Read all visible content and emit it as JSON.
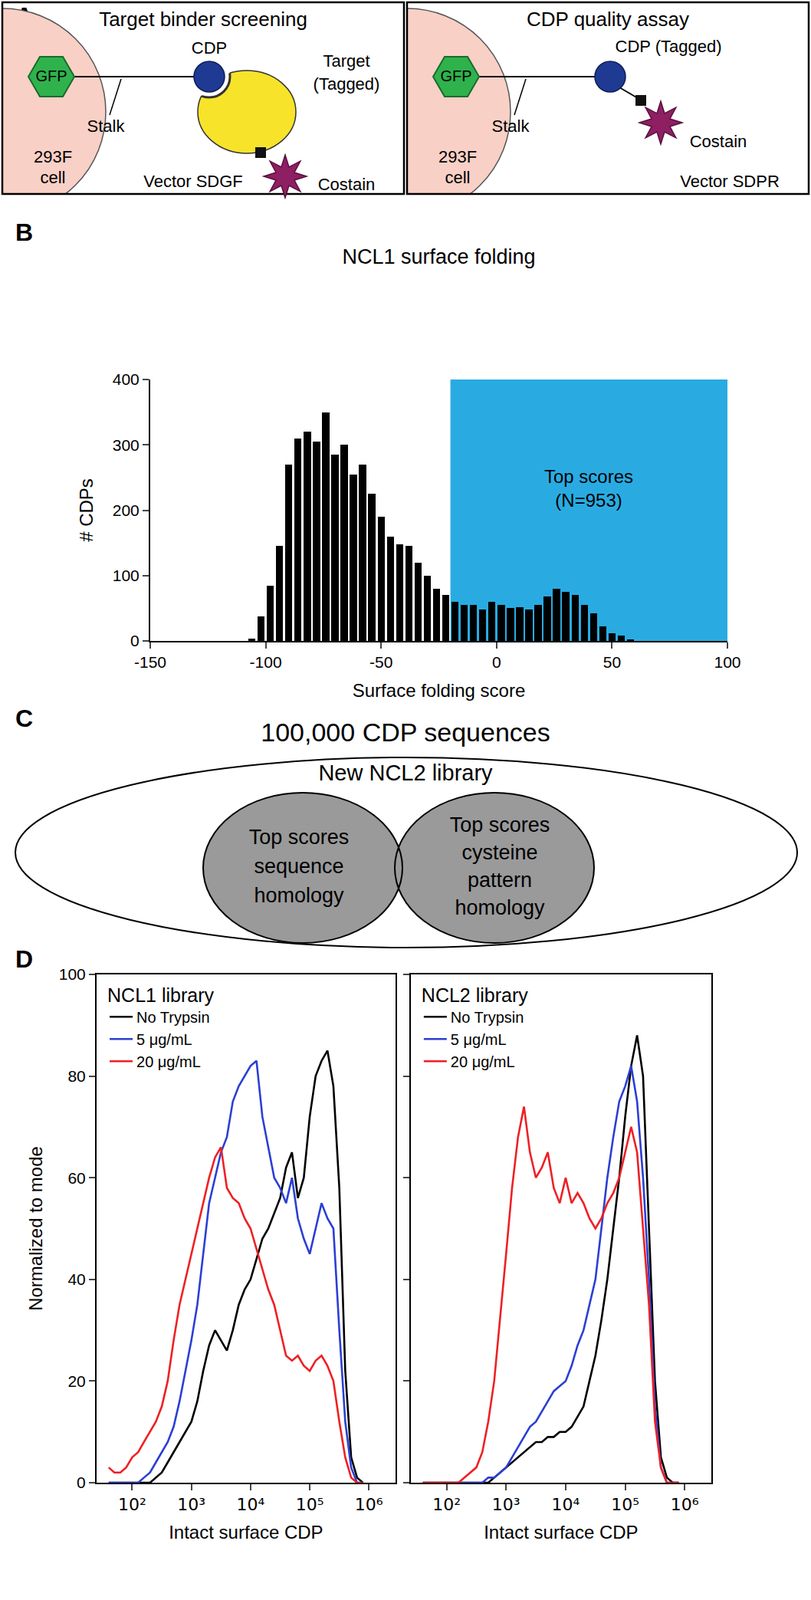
{
  "panel_labels": [
    "A",
    "B",
    "C",
    "D"
  ],
  "panel_a": {
    "left": {
      "title": "Target binder screening",
      "gfp": "GFP",
      "cell": [
        "293F",
        "cell"
      ],
      "stalk": "Stalk",
      "cdp": "CDP",
      "target": [
        "Target",
        "(Tagged)"
      ],
      "costain": "Costain",
      "vector": "Vector SDGF"
    },
    "right": {
      "title": "CDP quality assay",
      "gfp": "GFP",
      "cell": [
        "293F",
        "cell"
      ],
      "stalk": "Stalk",
      "cdp": "CDP (Tagged)",
      "costain": "Costain",
      "vector": "Vector SDPR"
    }
  },
  "chart_data": [
    {
      "type": "histogram",
      "title": "NCL1 surface folding",
      "x_label": "Surface folding score",
      "y_label": "# CDPs",
      "bins": [
        -108,
        -104,
        -100,
        -96,
        -92,
        -88,
        -84,
        -80,
        -76,
        -72,
        -68,
        -64,
        -60,
        -56,
        -52,
        -48,
        -44,
        -40,
        -36,
        -32,
        -28,
        -24,
        -20,
        -16,
        -12,
        -8,
        -4,
        0,
        4,
        8,
        12,
        16,
        20,
        24,
        28,
        32,
        36,
        40,
        44,
        48,
        52,
        56,
        60
      ],
      "values": [
        3,
        38,
        85,
        145,
        270,
        310,
        320,
        305,
        350,
        285,
        300,
        255,
        270,
        225,
        190,
        160,
        148,
        145,
        120,
        100,
        80,
        70,
        60,
        55,
        55,
        48,
        60,
        55,
        50,
        52,
        48,
        55,
        68,
        80,
        75,
        70,
        55,
        42,
        22,
        12,
        8,
        2
      ],
      "color": "#000000",
      "xlim": [
        -150,
        100
      ],
      "ylim": [
        0,
        400
      ],
      "xticks": [
        -150,
        -100,
        -50,
        0,
        50,
        100
      ],
      "yticks": [
        0,
        100,
        200,
        300,
        400
      ],
      "grid": false,
      "highlight": {
        "x": [
          -20,
          100
        ],
        "color": "#29abe2",
        "label": [
          "Top scores",
          "(N=953)"
        ]
      }
    },
    {
      "type": "line",
      "title": "NCL1 library",
      "x_label": "Intact surface CDP",
      "y_label": "Normalized to mode",
      "log": "x",
      "x": [
        40,
        50,
        63,
        79,
        100,
        126,
        158,
        200,
        251,
        316,
        398,
        501,
        631,
        794,
        1000,
        1259,
        1585,
        1995,
        2512,
        3162,
        3981,
        5012,
        6310,
        7943,
        10000,
        12589,
        15849,
        19953,
        25119,
        31623,
        39811,
        50119,
        63096,
        79433,
        100000,
        125893,
        158489,
        199526,
        251189,
        316228,
        398107,
        501187,
        630957,
        794328
      ],
      "series": [
        {
          "name": "No Trypsin",
          "color": "#000000",
          "values": [
            0,
            0,
            0,
            0,
            0,
            0,
            0,
            0,
            1,
            2,
            4,
            6,
            8,
            10,
            12,
            16,
            22,
            27,
            30,
            28,
            26,
            30,
            35,
            38,
            40,
            44,
            48,
            50,
            53,
            56,
            62,
            65,
            56,
            60,
            72,
            80,
            83,
            85,
            78,
            58,
            22,
            5,
            1,
            0
          ]
        },
        {
          "name": "5 μg/mL",
          "color": "#2b3fd4",
          "values": [
            0,
            0,
            0,
            0,
            0,
            0,
            1,
            2,
            4,
            6,
            8,
            11,
            16,
            22,
            28,
            35,
            45,
            55,
            60,
            65,
            68,
            75,
            78,
            80,
            82,
            83,
            72,
            66,
            60,
            58,
            55,
            60,
            52,
            48,
            45,
            50,
            55,
            52,
            50,
            30,
            12,
            3,
            0,
            0
          ]
        },
        {
          "name": "20 μg/mL",
          "color": "#ee2024",
          "values": [
            3,
            2,
            2,
            3,
            5,
            6,
            8,
            10,
            12,
            15,
            20,
            28,
            35,
            40,
            45,
            50,
            55,
            60,
            64,
            66,
            58,
            56,
            55,
            52,
            50,
            46,
            42,
            38,
            35,
            30,
            25,
            24,
            25,
            23,
            22,
            24,
            25,
            23,
            20,
            12,
            5,
            1,
            0,
            0
          ]
        }
      ],
      "xlim": [
        25,
        2800000
      ],
      "ylim": [
        0,
        100
      ],
      "xticks": [
        {
          "value": 100,
          "label": "10²"
        },
        {
          "value": 1000,
          "label": "10³"
        },
        {
          "value": 10000,
          "label": "10⁴"
        },
        {
          "value": 100000,
          "label": "10⁵"
        },
        {
          "value": 1000000,
          "label": "10⁶"
        }
      ],
      "yticks": [
        0,
        20,
        40,
        60,
        80,
        100
      ],
      "legend": "top left",
      "grid": false
    },
    {
      "type": "line",
      "title": "NCL2 library",
      "x_label": "Intact surface CDP",
      "log": "x",
      "x": [
        40,
        50,
        63,
        79,
        100,
        126,
        158,
        200,
        251,
        316,
        398,
        501,
        631,
        794,
        1000,
        1259,
        1585,
        1995,
        2512,
        3162,
        3981,
        5012,
        6310,
        7943,
        10000,
        12589,
        15849,
        19953,
        25119,
        31623,
        39811,
        50119,
        63096,
        79433,
        100000,
        125893,
        158489,
        199526,
        251189,
        316228,
        398107,
        501187,
        630957,
        794328
      ],
      "series": [
        {
          "name": "No Trypsin",
          "color": "#000000",
          "values": [
            0,
            0,
            0,
            0,
            0,
            0,
            0,
            0,
            0,
            0,
            0,
            0,
            1,
            2,
            3,
            4,
            5,
            6,
            7,
            8,
            8,
            9,
            9,
            10,
            10,
            11,
            13,
            15,
            20,
            25,
            32,
            40,
            50,
            60,
            72,
            82,
            88,
            80,
            50,
            20,
            5,
            1,
            0,
            0
          ]
        },
        {
          "name": "5 μg/mL",
          "color": "#2b3fd4",
          "values": [
            0,
            0,
            0,
            0,
            0,
            0,
            0,
            0,
            0,
            0,
            0,
            1,
            1,
            2,
            3,
            5,
            7,
            9,
            11,
            12,
            14,
            16,
            18,
            19,
            20,
            23,
            27,
            30,
            35,
            40,
            50,
            60,
            68,
            75,
            78,
            82,
            75,
            60,
            40,
            15,
            3,
            0,
            0,
            0
          ]
        },
        {
          "name": "20 μg/mL",
          "color": "#ee2024",
          "values": [
            0,
            0,
            0,
            0,
            0,
            0,
            0,
            1,
            2,
            3,
            6,
            12,
            20,
            32,
            45,
            58,
            68,
            74,
            65,
            60,
            62,
            65,
            58,
            55,
            60,
            55,
            57,
            55,
            52,
            50,
            52,
            55,
            57,
            60,
            65,
            70,
            65,
            50,
            35,
            12,
            3,
            0,
            0,
            0
          ]
        }
      ],
      "xlim": [
        25,
        2800000
      ],
      "ylim": [
        0,
        100
      ],
      "xticks": [
        {
          "value": 100,
          "label": "10²"
        },
        {
          "value": 1000,
          "label": "10³"
        },
        {
          "value": 10000,
          "label": "10⁴"
        },
        {
          "value": 100000,
          "label": "10⁵"
        },
        {
          "value": 1000000,
          "label": "10⁶"
        }
      ],
      "yticks": [
        0,
        20,
        40,
        60,
        80,
        100
      ],
      "tick_labels": "x",
      "legend": "top left",
      "grid": false
    }
  ],
  "panel_c": {
    "outer_label": "100,000 CDP sequences",
    "inner_label": "New NCL2 library",
    "left_circle": [
      "Top scores",
      "sequence",
      "homology"
    ],
    "right_circle": [
      "Top scores",
      "cysteine",
      "pattern",
      "homology"
    ]
  }
}
